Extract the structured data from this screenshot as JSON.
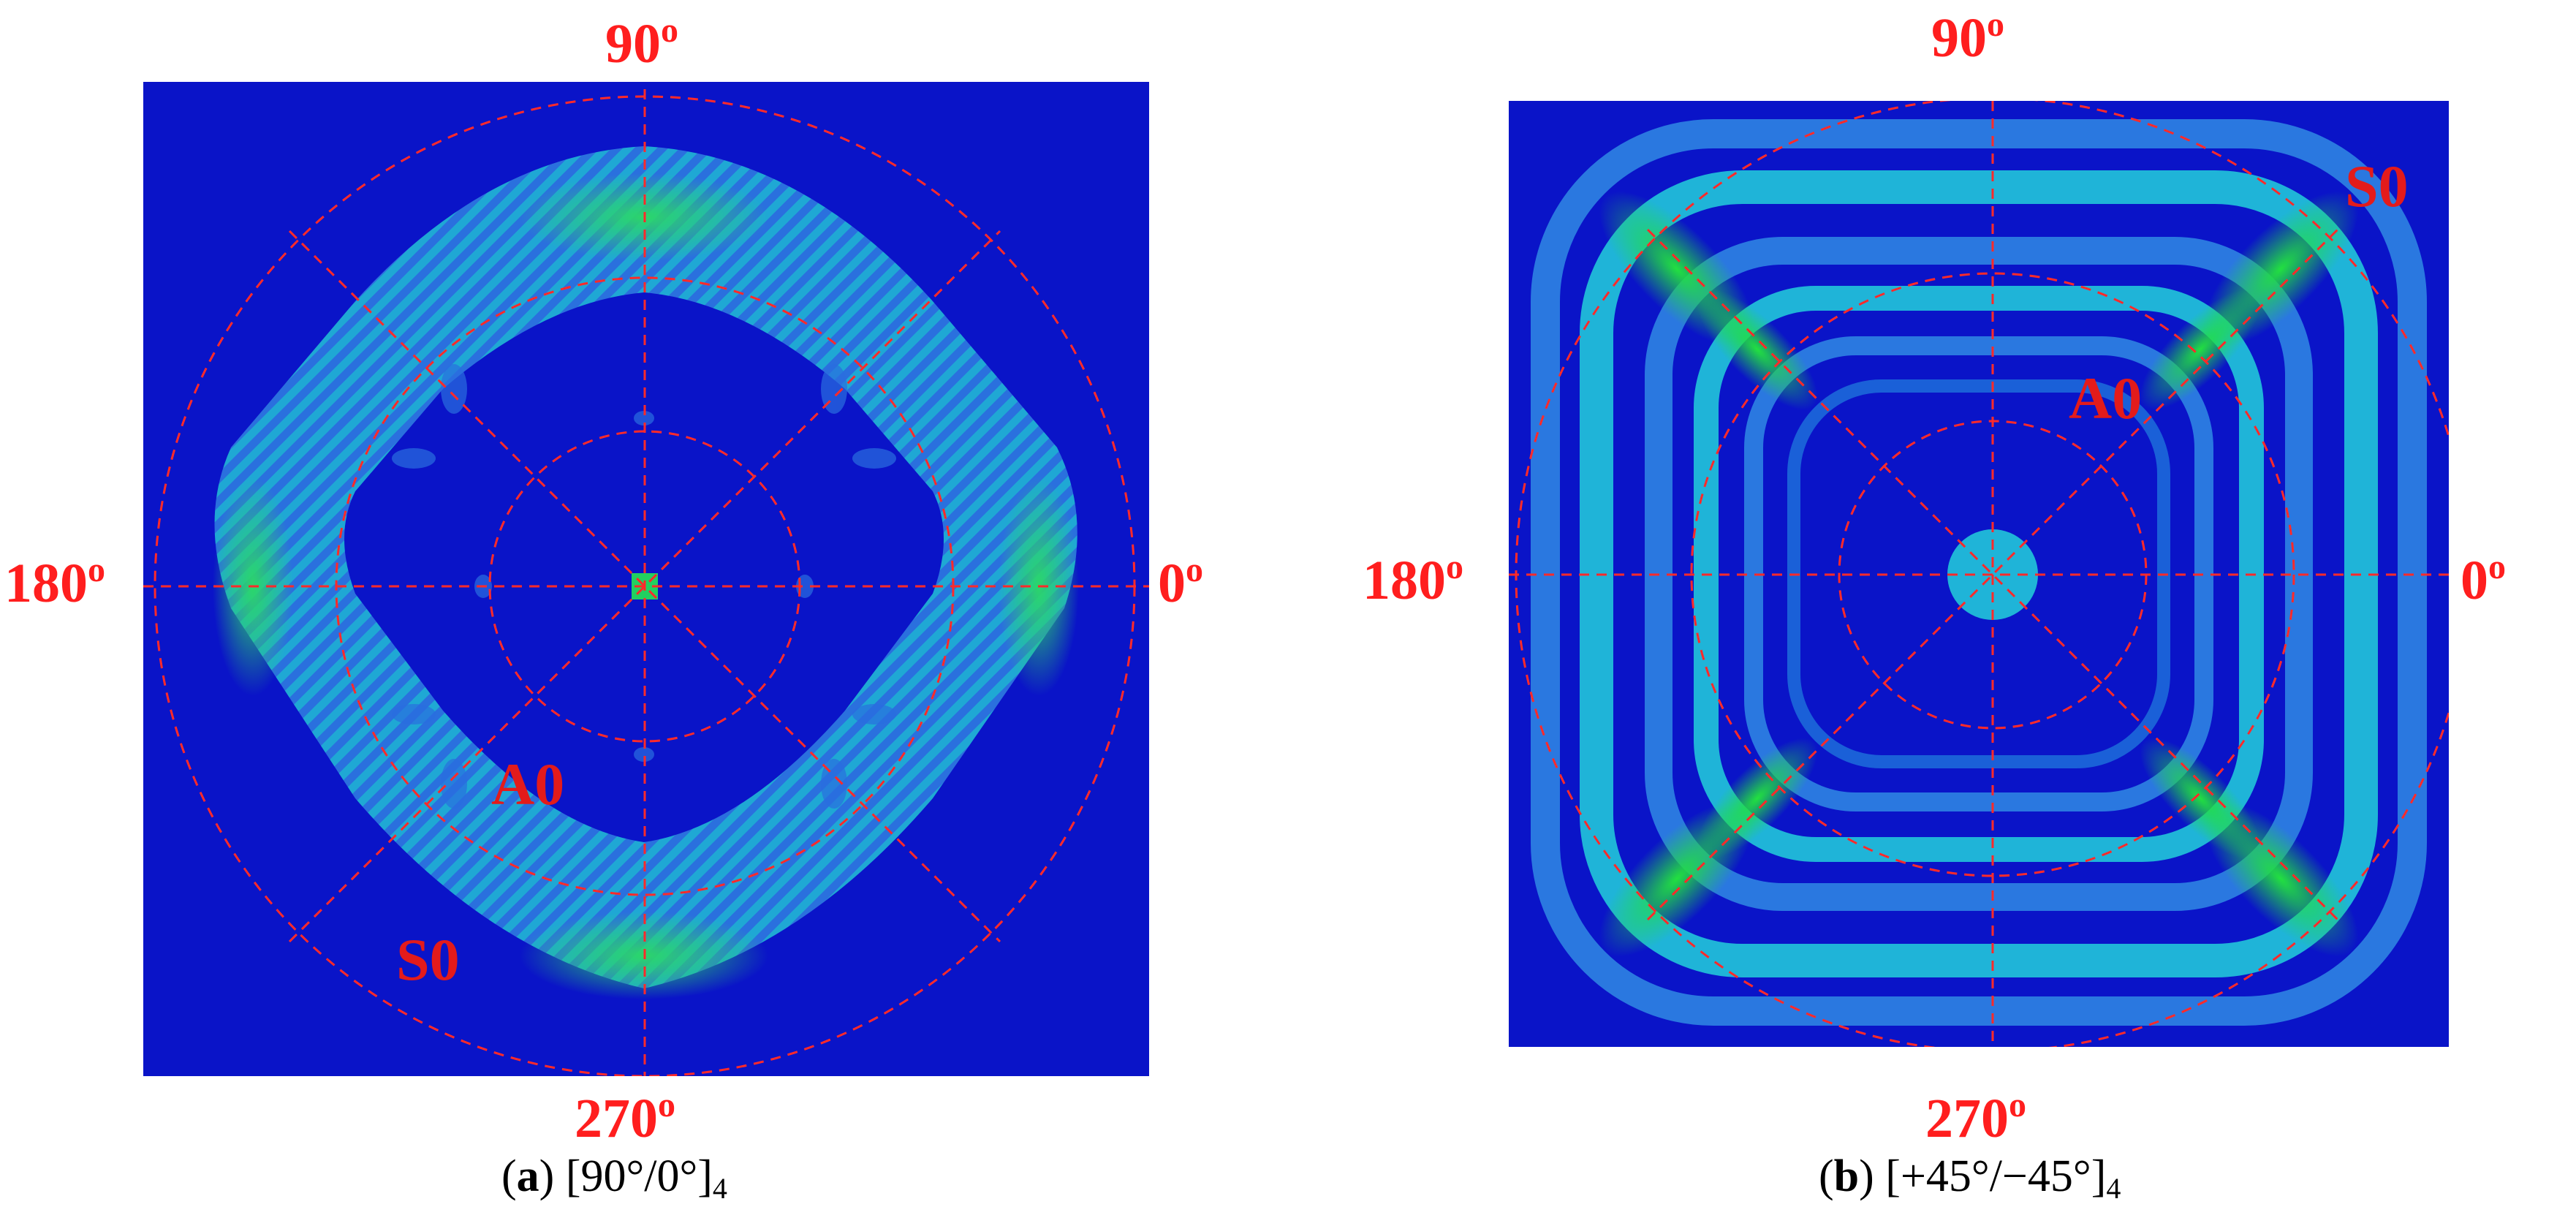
{
  "panels": [
    {
      "id": "a",
      "angle_labels": {
        "top": "90",
        "right": "0",
        "bottom": "270",
        "left": "180",
        "degree_mark": "o"
      },
      "mode_labels": {
        "a0": "A0",
        "s0": "S0"
      },
      "caption": {
        "letter": "a",
        "open": "(",
        "close": ")",
        "layup": "[90°/0°]",
        "repeat": "4"
      }
    },
    {
      "id": "b",
      "angle_labels": {
        "top": "90",
        "right": "0",
        "bottom": "270",
        "left": "180",
        "degree_mark": "o"
      },
      "mode_labels": {
        "a0": "A0",
        "s0": "S0"
      },
      "caption": {
        "letter": "b",
        "open": "(",
        "close": ")",
        "layup": "[+45°/−45°]",
        "repeat": "4"
      }
    }
  ],
  "colors": {
    "background_field": "#0a14c8",
    "low_band": "#2a78e0",
    "mid_band": "#1fb4d8",
    "high_band": "#3fd890",
    "peak": "#22e040",
    "guide_lines": "#ff2a2a",
    "label_red": "#ff1e1e"
  }
}
